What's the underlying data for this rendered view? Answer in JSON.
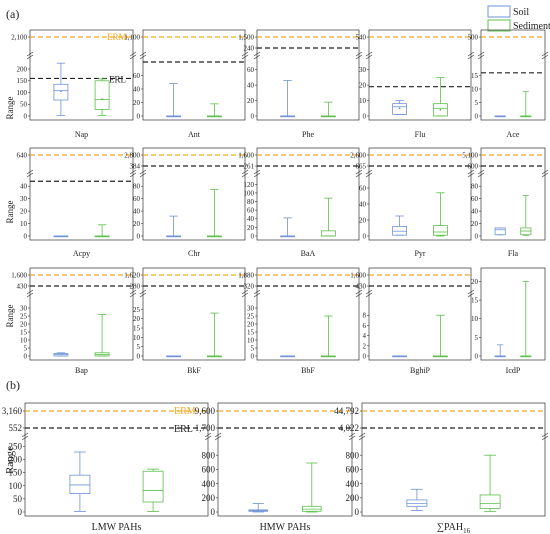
{
  "figure": {
    "panel_a_label": "(a)",
    "panel_b_label": "(b)",
    "ylabel": "Range",
    "legend": [
      {
        "name": "Soil",
        "color": "#6f93d6"
      },
      {
        "name": "Sediment",
        "color": "#5cbf4a"
      }
    ],
    "erm_label": "ERM",
    "erl_label": "ERL",
    "erm_color": "#f5a623",
    "erl_color": "#222222"
  },
  "chart_data": [
    {
      "type": "box",
      "name": "Nap",
      "ylim": [
        0,
        230
      ],
      "ticks": [
        0,
        50,
        100,
        150,
        200
      ],
      "break_ticks": [
        "2,100"
      ],
      "erm": 2100,
      "erl": 160,
      "boxes": [
        {
          "series": "Soil",
          "min": 2,
          "q1": 68,
          "median": 108,
          "q3": 135,
          "max": 225,
          "mean": 105
        },
        {
          "series": "Sediment",
          "min": 2,
          "q1": 28,
          "median": 70,
          "q3": 150,
          "max": 158,
          "mean": 72
        }
      ]
    },
    {
      "type": "box",
      "name": "Ant",
      "ylim": [
        0,
        80
      ],
      "ticks": [
        0,
        20,
        40,
        60
      ],
      "break_ticks": [
        "1,100"
      ],
      "erm": 1100,
      "erl": 85,
      "boxes": [
        {
          "series": "Soil",
          "min": 0,
          "q1": 0,
          "median": 0,
          "q3": 0,
          "max": 48,
          "mean": null
        },
        {
          "series": "Sediment",
          "min": 0,
          "q1": 0,
          "median": 0,
          "q3": 0,
          "max": 18,
          "mean": null
        }
      ]
    },
    {
      "type": "box",
      "name": "Phe",
      "ylim": [
        0,
        70
      ],
      "ticks": [
        0,
        20,
        40,
        60
      ],
      "break_ticks": [
        "1,500",
        "240"
      ],
      "erm": 1500,
      "erl": 240,
      "boxes": [
        {
          "series": "Soil",
          "min": 0,
          "q1": 0,
          "median": 0,
          "q3": 0,
          "max": 46,
          "mean": null
        },
        {
          "series": "Sediment",
          "min": 0,
          "q1": 0,
          "median": 0,
          "q3": 0,
          "max": 18,
          "mean": null
        }
      ]
    },
    {
      "type": "box",
      "name": "Flu",
      "ylim": [
        0,
        35
      ],
      "ticks": [
        0,
        10,
        20,
        30
      ],
      "break_ticks": [
        "540"
      ],
      "erm": 540,
      "erl": 19,
      "boxes": [
        {
          "series": "Soil",
          "min": 1,
          "q1": 1,
          "median": 6,
          "q3": 8,
          "max": 10,
          "mean": 5
        },
        {
          "series": "Sediment",
          "min": 0,
          "q1": 0,
          "median": 5,
          "q3": 8,
          "max": 25,
          "mean": 4
        }
      ]
    },
    {
      "type": "box",
      "name": "Ace",
      "ylim": [
        0,
        20
      ],
      "ticks": [
        0,
        5,
        10,
        15
      ],
      "break_ticks": [
        "500"
      ],
      "erm": 500,
      "erl": 16,
      "boxes": [
        {
          "series": "Soil",
          "min": 0,
          "q1": 0,
          "median": 0,
          "q3": 0,
          "max": 0,
          "mean": null
        },
        {
          "series": "Sediment",
          "min": 0,
          "q1": 0,
          "median": 0,
          "q3": 0,
          "max": 9,
          "mean": null
        }
      ]
    },
    {
      "type": "box",
      "name": "Acpy",
      "ylim": [
        0,
        45
      ],
      "ticks": [
        0,
        10,
        20,
        30,
        40
      ],
      "break_ticks": [
        "640"
      ],
      "erm": 640,
      "erl": 44,
      "boxes": [
        {
          "series": "Soil",
          "min": 0,
          "q1": 0,
          "median": 0,
          "q3": 0,
          "max": 0,
          "mean": null
        },
        {
          "series": "Sediment",
          "min": 0,
          "q1": 0,
          "median": 0,
          "q3": 0,
          "max": 9,
          "mean": null
        }
      ]
    },
    {
      "type": "box",
      "name": "Chr",
      "ylim": [
        0,
        90
      ],
      "ticks": [
        0,
        20,
        40,
        60,
        80
      ],
      "break_ticks": [
        "2,800",
        "384"
      ],
      "erm": 2800,
      "erl": 384,
      "boxes": [
        {
          "series": "Soil",
          "min": 0,
          "q1": 0,
          "median": 0,
          "q3": 0,
          "max": 32,
          "mean": null
        },
        {
          "series": "Sediment",
          "min": 0,
          "q1": 0,
          "median": 0,
          "q3": 0,
          "max": 75,
          "mean": null
        }
      ]
    },
    {
      "type": "box",
      "name": "BaA",
      "ylim": [
        0,
        130
      ],
      "ticks": [
        0,
        20,
        40,
        60,
        80,
        100,
        120
      ],
      "break_ticks": [
        "1,600",
        "261"
      ],
      "erm": 1600,
      "erl": 261,
      "boxes": [
        {
          "series": "Soil",
          "min": 0,
          "q1": 0,
          "median": 0,
          "q3": 0,
          "max": 42,
          "mean": null
        },
        {
          "series": "Sediment",
          "min": 0,
          "q1": 0,
          "median": 0,
          "q3": 12,
          "max": 88,
          "mean": null
        }
      ]
    },
    {
      "type": "box",
      "name": "Pyr",
      "ylim": [
        0,
        70
      ],
      "ticks": [
        0,
        20,
        40,
        60
      ],
      "break_ticks": [
        "2,600",
        "665"
      ],
      "erm": 2600,
      "erl": 665,
      "boxes": [
        {
          "series": "Soil",
          "min": 1,
          "q1": 1,
          "median": 6,
          "q3": 12,
          "max": 25,
          "mean": null
        },
        {
          "series": "Sediment",
          "min": 0,
          "q1": 1,
          "median": 5,
          "q3": 13,
          "max": 54,
          "mean": null
        }
      ]
    },
    {
      "type": "box",
      "name": "Fla",
      "ylim": [
        0,
        90
      ],
      "ticks": [
        0,
        20,
        40,
        60,
        80
      ],
      "break_ticks": [
        "5,100",
        "600"
      ],
      "erm": 5100,
      "erl": 600,
      "boxes": [
        {
          "series": "Soil",
          "min": 2,
          "q1": 2,
          "median": 10,
          "q3": 13,
          "max": 13,
          "mean": null
        },
        {
          "series": "Sediment",
          "min": 1,
          "q1": 2,
          "median": 8,
          "q3": 13,
          "max": 65,
          "mean": null
        }
      ]
    },
    {
      "type": "box",
      "name": "Bap",
      "ylim": [
        0,
        35
      ],
      "ticks": [
        0,
        5,
        10,
        15,
        20,
        25,
        30
      ],
      "break_ticks": [
        "1,600",
        "430"
      ],
      "erm": 1600,
      "erl": 430,
      "boxes": [
        {
          "series": "Soil",
          "min": 0,
          "q1": 0,
          "median": 1,
          "q3": 1.5,
          "max": 2,
          "mean": null
        },
        {
          "series": "Sediment",
          "min": 0,
          "q1": 0,
          "median": 1,
          "q3": 2,
          "max": 26,
          "mean": null
        }
      ]
    },
    {
      "type": "box",
      "name": "BkF",
      "ylim": [
        0,
        30
      ],
      "ticks": [
        0,
        5,
        10,
        15,
        20,
        25
      ],
      "break_ticks": [
        "1,620",
        "280"
      ],
      "erm": 1620,
      "erl": 280,
      "boxes": [
        {
          "series": "Soil",
          "min": 0,
          "q1": 0,
          "median": 0,
          "q3": 0,
          "max": 0,
          "mean": null
        },
        {
          "series": "Sediment",
          "min": 0,
          "q1": 0,
          "median": 0,
          "q3": 0,
          "max": 23,
          "mean": null
        }
      ]
    },
    {
      "type": "box",
      "name": "BbF",
      "ylim": [
        0,
        35
      ],
      "ticks": [
        0,
        5,
        10,
        15,
        20,
        25,
        30
      ],
      "break_ticks": [
        "1,880",
        "320"
      ],
      "erm": 1880,
      "erl": 320,
      "boxes": [
        {
          "series": "Soil",
          "min": 0,
          "q1": 0,
          "median": 0,
          "q3": 0,
          "max": 0,
          "mean": null
        },
        {
          "series": "Sediment",
          "min": 0,
          "q1": 0,
          "median": 0,
          "q3": 0,
          "max": 25,
          "mean": null
        }
      ]
    },
    {
      "type": "box",
      "name": "BghiP",
      "ylim": [
        0,
        11
      ],
      "ticks": [
        0,
        2,
        4,
        6,
        8
      ],
      "break_ticks": [
        "1,600",
        "430"
      ],
      "erm": 1600,
      "erl": 430,
      "boxes": [
        {
          "series": "Soil",
          "min": 0,
          "q1": 0,
          "median": 0,
          "q3": 0,
          "max": 0,
          "mean": null
        },
        {
          "series": "Sediment",
          "min": 0,
          "q1": 0,
          "median": 0,
          "q3": 0,
          "max": 8,
          "mean": null
        }
      ]
    },
    {
      "type": "box",
      "name": "IcdP",
      "ylim": [
        0,
        22
      ],
      "ticks": [
        0,
        5,
        10,
        15,
        20
      ],
      "break_ticks": [],
      "erm": null,
      "erl": null,
      "boxes": [
        {
          "series": "Soil",
          "min": 0,
          "q1": 0,
          "median": 0,
          "q3": 0,
          "max": 3,
          "mean": null
        },
        {
          "series": "Sediment",
          "min": 0,
          "q1": 0,
          "median": 0,
          "q3": 0,
          "max": 20,
          "mean": null
        }
      ]
    },
    {
      "type": "box",
      "name": "LMW PAHs",
      "ylim": [
        0,
        270
      ],
      "ticks": [
        0,
        50,
        100,
        150,
        200,
        250
      ],
      "break_ticks": [
        "3,160",
        "552"
      ],
      "erm": 3160,
      "erl": 552,
      "boxes": [
        {
          "series": "Soil",
          "min": 2,
          "q1": 70,
          "median": 103,
          "q3": 140,
          "max": 228,
          "mean": null
        },
        {
          "series": "Sediment",
          "min": 2,
          "q1": 38,
          "median": 82,
          "q3": 155,
          "max": 163,
          "mean": null
        }
      ]
    },
    {
      "type": "box",
      "name": "HMW PAHs",
      "ylim": [
        0,
        1000
      ],
      "ticks": [
        0,
        200,
        400,
        600,
        800
      ],
      "break_ticks": [
        "9,600",
        "1,700"
      ],
      "erm": 9600,
      "erl": 1700,
      "boxes": [
        {
          "series": "Soil",
          "min": 0,
          "q1": 10,
          "median": 20,
          "q3": 30,
          "max": 120,
          "mean": null
        },
        {
          "series": "Sediment",
          "min": 0,
          "q1": 10,
          "median": 40,
          "q3": 80,
          "max": 690,
          "mean": null
        }
      ]
    },
    {
      "type": "box",
      "name": "∑PAH",
      "name_sub": "16",
      "ylim": [
        0,
        1000
      ],
      "ticks": [
        0,
        200,
        400,
        600,
        800
      ],
      "break_ticks": [
        "44,792",
        "4,022"
      ],
      "erm": 44792,
      "erl": 4022,
      "boxes": [
        {
          "series": "Soil",
          "min": 20,
          "q1": 80,
          "median": 120,
          "q3": 170,
          "max": 320,
          "mean": null
        },
        {
          "series": "Sediment",
          "min": 5,
          "q1": 50,
          "median": 120,
          "q3": 240,
          "max": 800,
          "mean": null
        }
      ]
    }
  ]
}
